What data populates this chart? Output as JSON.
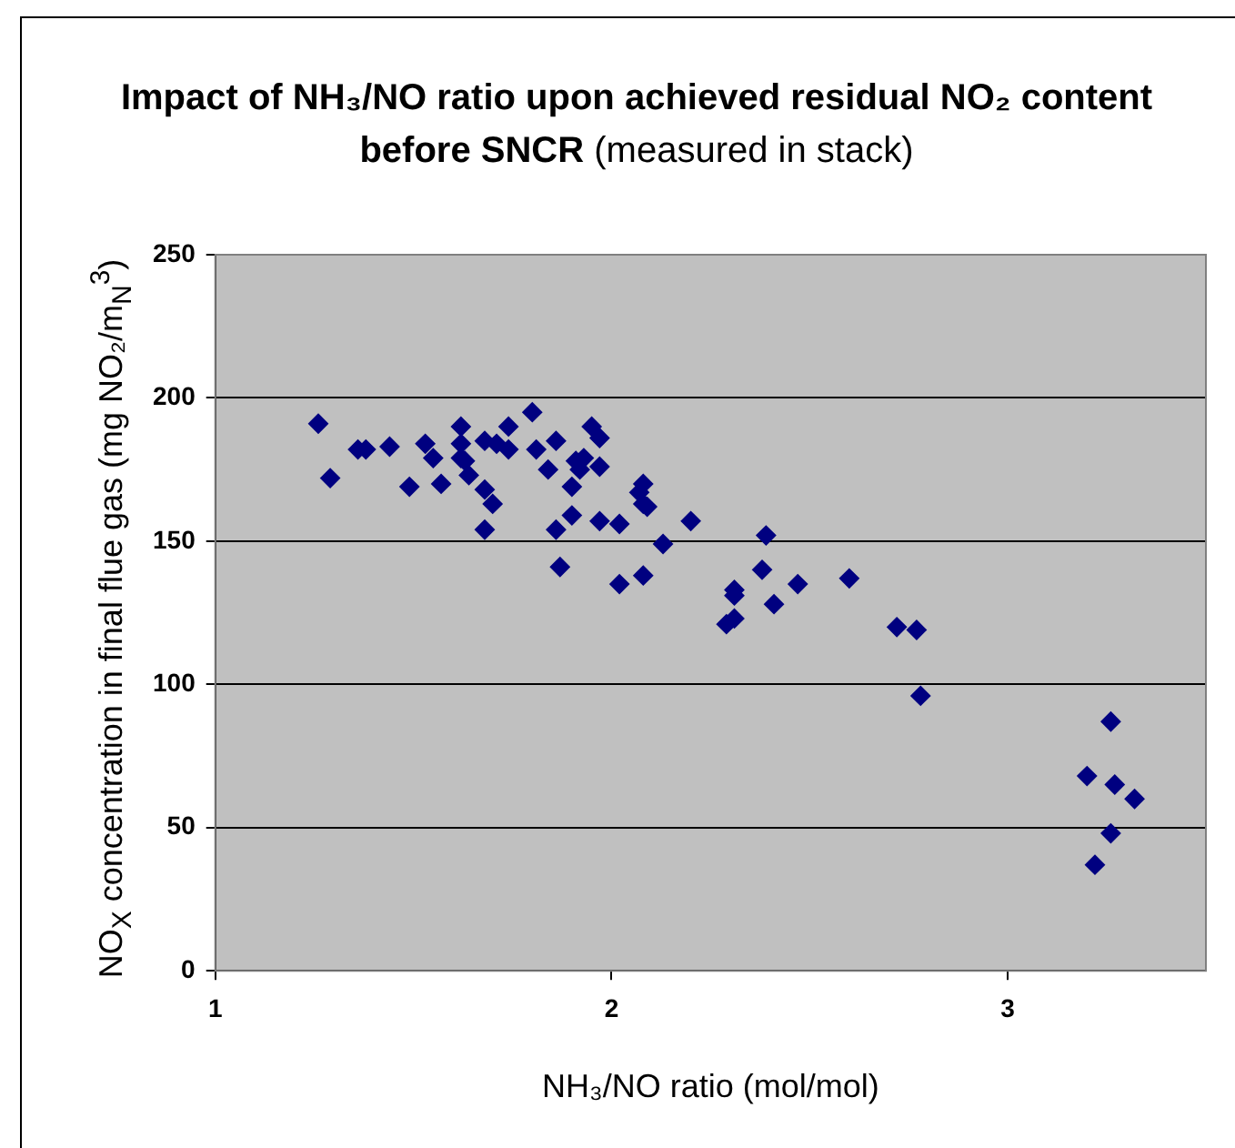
{
  "chart_data": {
    "type": "scatter",
    "title": "Impact of NH₃/NO ratio upon achieved residual NO₂ content before SNCR",
    "subtitle": "(measured in stack)",
    "xlabel": "NH₃/NO ratio (mol/mol)",
    "ylabel": "NO$_{X}$ concentration in final flue gas (mg NO₂/m$_{N}$$^{3}$)",
    "xlim": [
      1,
      3.5
    ],
    "xticks": [
      1,
      2,
      3
    ],
    "ylim": [
      0,
      250
    ],
    "yticks": [
      0,
      50,
      100,
      150,
      200,
      250
    ],
    "grid": "y",
    "legend": false,
    "marker": "diamond",
    "series": [
      {
        "color": "#000080",
        "x": [
          1.26,
          1.29,
          1.36,
          1.38,
          1.44,
          1.49,
          1.53,
          1.55,
          1.57,
          1.62,
          1.62,
          1.62,
          1.63,
          1.64,
          1.68,
          1.7,
          1.68,
          1.68,
          1.71,
          1.74,
          1.74,
          1.8,
          1.81,
          1.86,
          1.84,
          1.9,
          1.86,
          1.9,
          1.87,
          1.95,
          1.97,
          1.93,
          1.91,
          1.92,
          1.97,
          1.97,
          2.02,
          2.02,
          2.08,
          2.08,
          2.07,
          2.08,
          2.09,
          2.13,
          2.2,
          2.39,
          2.38,
          2.31,
          2.31,
          2.29,
          2.31,
          2.41,
          2.47,
          2.6,
          2.72,
          2.77,
          2.78,
          3.26,
          3.2,
          3.27,
          3.32,
          3.26,
          3.22
        ],
        "values": [
          191,
          172,
          182,
          182,
          183,
          169,
          184,
          179,
          170,
          190,
          184,
          179,
          178,
          173,
          168,
          163,
          154,
          185,
          184,
          190,
          182,
          195,
          182,
          185,
          175,
          169,
          154,
          159,
          141,
          190,
          186,
          179,
          178,
          175,
          176,
          157,
          156,
          135,
          138,
          170,
          167,
          163,
          162,
          149,
          157,
          152,
          140,
          133,
          131,
          121,
          123,
          128,
          135,
          137,
          120,
          119,
          96,
          87,
          68,
          65,
          60,
          48,
          37
        ]
      }
    ]
  }
}
